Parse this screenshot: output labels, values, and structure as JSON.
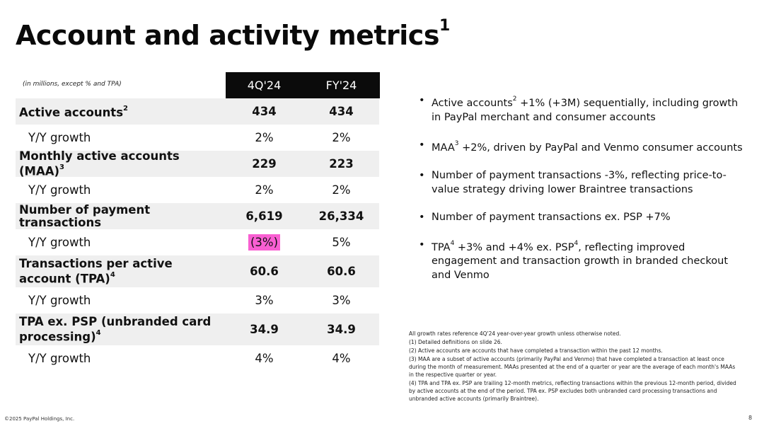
{
  "slide": {
    "title": "Account and activity metrics",
    "title_sup": "1",
    "copyright": "©2025 PayPal Holdings, Inc.",
    "page_number": "8"
  },
  "table": {
    "units_note": "(in millions, except % and TPA)",
    "columns": [
      "4Q'24",
      "FY'24"
    ],
    "rows": [
      {
        "label": "Active accounts",
        "sup": "2",
        "q": "434",
        "fy": "434"
      },
      {
        "label": "Y/Y growth",
        "sup": "",
        "q": "2%",
        "fy": "2%"
      },
      {
        "label": "Monthly active accounts (MAA)",
        "sup": "3",
        "q": "229",
        "fy": "223"
      },
      {
        "label": "Y/Y growth",
        "sup": "",
        "q": "2%",
        "fy": "2%"
      },
      {
        "label": "Number of payment transactions",
        "sup": "",
        "q": "6,619",
        "fy": "26,334"
      },
      {
        "label": "Y/Y growth",
        "sup": "",
        "q": "(3%)",
        "fy": "5%"
      },
      {
        "label": "Transactions per active account (TPA)",
        "sup": "4",
        "q": "60.6",
        "fy": "60.6"
      },
      {
        "label": "Y/Y growth",
        "sup": "",
        "q": "3%",
        "fy": "3%"
      },
      {
        "label": "TPA ex. PSP (unbranded card processing)",
        "sup": "4",
        "q": "34.9",
        "fy": "34.9"
      },
      {
        "label": "Y/Y growth",
        "sup": "",
        "q": "4%",
        "fy": "4%"
      }
    ]
  },
  "bullets": [
    {
      "a": "Active accounts",
      "sup1": "2",
      "b": " +1% (+3M) sequentially, including growth in PayPal merchant and consumer accounts",
      "sup2": "",
      "c": ""
    },
    {
      "a": "MAA",
      "sup1": "3",
      "b": " +2%, driven by PayPal and Venmo consumer accounts",
      "sup2": "",
      "c": ""
    },
    {
      "a": "Number of payment transactions -3%, reflecting price-to-value strategy driving lower Braintree transactions",
      "sup1": "",
      "b": "",
      "sup2": "",
      "c": ""
    },
    {
      "a": "Number of payment transactions ex. PSP +7%",
      "sup1": "",
      "b": "",
      "sup2": "",
      "c": ""
    },
    {
      "a": "TPA",
      "sup1": "4",
      "b": " +3% and +4% ex. PSP",
      "sup2": "4",
      "c": ", reflecting improved engagement and transaction growth in branded checkout and Venmo"
    }
  ],
  "footnotes": [
    "All growth rates reference 4Q'24 year-over-year growth unless otherwise noted.",
    "(1) Detailed definitions on slide 26.",
    "(2) Active accounts are accounts that have completed a transaction within the past 12 months.",
    "(3) MAA are a subset of active accounts (primarily PayPal and Venmo) that have completed a transaction at least once during the month of measurement. MAAs presented at the end of a quarter or year are the average of each month's MAAs in the respective quarter or year.",
    "(4) TPA and TPA ex. PSP are trailing 12-month metrics, reflecting transactions within the previous 12-month period, divided by active accounts at the end of the period. TPA ex. PSP excludes both unbranded card processing transactions and unbranded active accounts (primarily Braintree)."
  ],
  "colors": {
    "header_bg": "#0b0b0b",
    "row_shade": "#efefef",
    "highlight": "#f95fd2"
  }
}
